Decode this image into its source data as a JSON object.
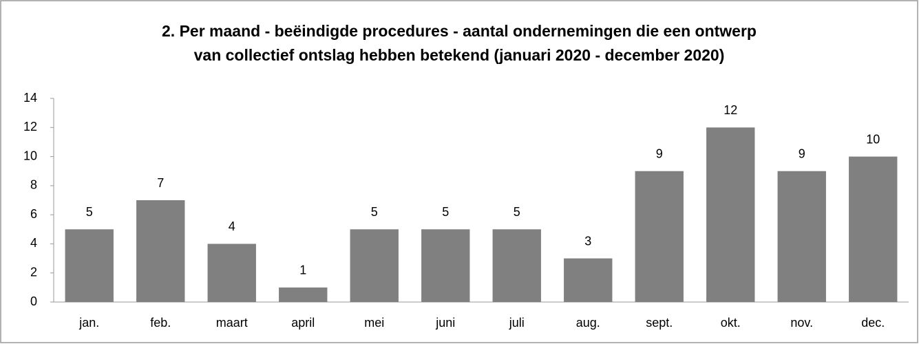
{
  "chart_data": {
    "type": "bar",
    "title": [
      "2. Per maand - beëindigde procedures - aantal ondernemingen die een ontwerp",
      "van collectief ontslag hebben betekend (januari 2020 - december 2020)"
    ],
    "categories": [
      "jan.",
      "feb.",
      "maart",
      "april",
      "mei",
      "juni",
      "juli",
      "aug.",
      "sept.",
      "okt.",
      "nov.",
      "dec."
    ],
    "values": [
      5,
      7,
      4,
      1,
      5,
      5,
      5,
      3,
      9,
      12,
      9,
      10
    ],
    "color": "#808080",
    "ylim": [
      0,
      14
    ],
    "yticks": [
      0,
      2,
      4,
      6,
      8,
      10,
      12,
      14
    ],
    "grid": false
  }
}
